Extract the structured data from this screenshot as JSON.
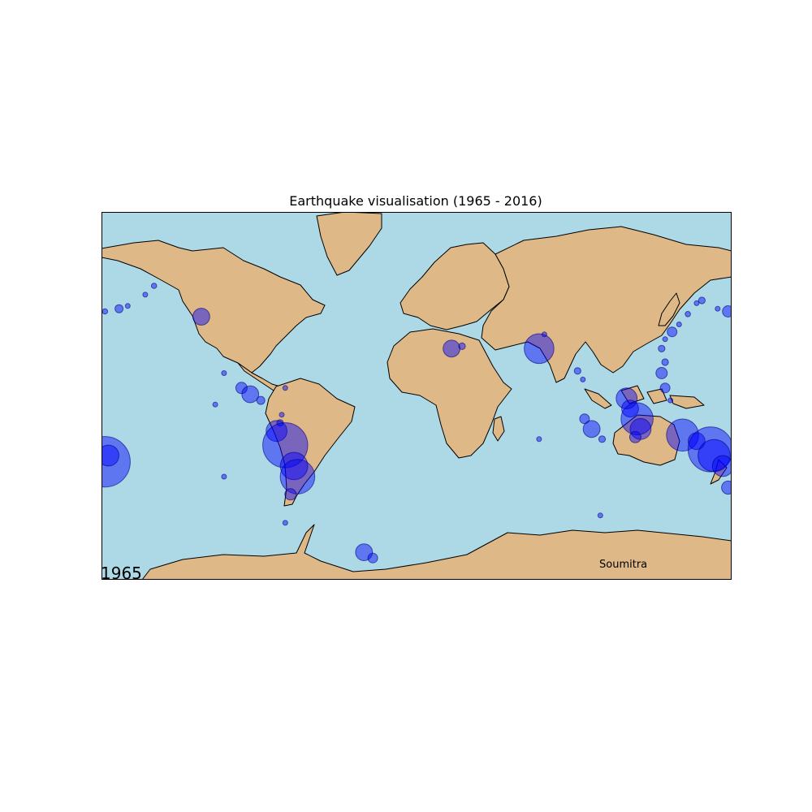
{
  "title": "Earthquake visualisation (1965 - 2016)",
  "year": "1965",
  "credit": "Soumitra",
  "colors": {
    "ocean": "#add8e6",
    "land": "#deb887",
    "marker": "#0000ff"
  },
  "map_data": {
    "projection": "Miller cylindrical",
    "lon_range": [
      -180,
      180
    ],
    "lat_range": [
      -65,
      80
    ],
    "events": [
      {
        "lon": 140,
        "lat": 36,
        "m": 6.2
      },
      {
        "lon": 142,
        "lat": 40,
        "m": 6.0
      },
      {
        "lon": 146,
        "lat": 43,
        "m": 6.4
      },
      {
        "lon": 150,
        "lat": 46,
        "m": 6.0
      },
      {
        "lon": 155,
        "lat": 50,
        "m": 6.1
      },
      {
        "lon": 160,
        "lat": 54,
        "m": 6.0
      },
      {
        "lon": 163,
        "lat": 55,
        "m": 6.2
      },
      {
        "lon": 172,
        "lat": 52,
        "m": 6.0
      },
      {
        "lon": 178,
        "lat": 51,
        "m": 6.5
      },
      {
        "lon": -178,
        "lat": 51,
        "m": 6.1
      },
      {
        "lon": -170,
        "lat": 52,
        "m": 6.3
      },
      {
        "lon": -165,
        "lat": 53,
        "m": 6.0
      },
      {
        "lon": -155,
        "lat": 57,
        "m": 6.0
      },
      {
        "lon": -150,
        "lat": 60,
        "m": 6.1
      },
      {
        "lon": -123,
        "lat": 49,
        "m": 6.8
      },
      {
        "lon": -110,
        "lat": 25,
        "m": 6.0
      },
      {
        "lon": -100,
        "lat": 18,
        "m": 6.5
      },
      {
        "lon": -95,
        "lat": 15,
        "m": 6.8
      },
      {
        "lon": -89,
        "lat": 12,
        "m": 6.3
      },
      {
        "lon": -78,
        "lat": 1,
        "m": 6.2
      },
      {
        "lon": -77,
        "lat": 5,
        "m": 6.0
      },
      {
        "lon": -80,
        "lat": -3,
        "m": 7.0
      },
      {
        "lon": -75,
        "lat": -10,
        "m": 8.0
      },
      {
        "lon": -70,
        "lat": -20,
        "m": 7.3
      },
      {
        "lon": -68,
        "lat": -25,
        "m": 7.6
      },
      {
        "lon": -72,
        "lat": -33,
        "m": 6.5
      },
      {
        "lon": -75,
        "lat": -45,
        "m": 6.0
      },
      {
        "lon": -30,
        "lat": -56,
        "m": 6.8
      },
      {
        "lon": -25,
        "lat": -58,
        "m": 6.4
      },
      {
        "lon": 20,
        "lat": 36,
        "m": 6.8
      },
      {
        "lon": 26,
        "lat": 37,
        "m": 6.2
      },
      {
        "lon": 70,
        "lat": 36,
        "m": 7.4
      },
      {
        "lon": 73,
        "lat": 42,
        "m": 6.0
      },
      {
        "lon": 92,
        "lat": 26,
        "m": 6.2
      },
      {
        "lon": 95,
        "lat": 22,
        "m": 6.0
      },
      {
        "lon": 96,
        "lat": 3,
        "m": 6.4
      },
      {
        "lon": 100,
        "lat": -2,
        "m": 6.8
      },
      {
        "lon": 106,
        "lat": -7,
        "m": 6.2
      },
      {
        "lon": 120,
        "lat": 13,
        "m": 7.0
      },
      {
        "lon": 122,
        "lat": 8,
        "m": 6.8
      },
      {
        "lon": 126,
        "lat": 3,
        "m": 7.5
      },
      {
        "lon": 128,
        "lat": -2,
        "m": 7.0
      },
      {
        "lon": 125,
        "lat": -6,
        "m": 6.5
      },
      {
        "lon": 140,
        "lat": 25,
        "m": 6.5
      },
      {
        "lon": 142,
        "lat": 18,
        "m": 6.4
      },
      {
        "lon": 145,
        "lat": 12,
        "m": 6.0
      },
      {
        "lon": 142,
        "lat": 30,
        "m": 6.2
      },
      {
        "lon": 152,
        "lat": -5,
        "m": 7.5
      },
      {
        "lon": 160,
        "lat": -8,
        "m": 6.8
      },
      {
        "lon": 168,
        "lat": -12,
        "m": 8.0
      },
      {
        "lon": 170,
        "lat": -15,
        "m": 7.5
      },
      {
        "lon": 175,
        "lat": -20,
        "m": 7.0
      },
      {
        "lon": 178,
        "lat": -30,
        "m": 6.6
      },
      {
        "lon": -178,
        "lat": -18,
        "m": 8.2
      },
      {
        "lon": -176,
        "lat": -15,
        "m": 7.0
      },
      {
        "lon": -110,
        "lat": -25,
        "m": 6.0
      },
      {
        "lon": -115,
        "lat": 10,
        "m": 6.0
      },
      {
        "lon": -75,
        "lat": 18,
        "m": 6.0
      },
      {
        "lon": 70,
        "lat": -7,
        "m": 6.0
      },
      {
        "lon": 105,
        "lat": -42,
        "m": 6.0
      }
    ]
  }
}
